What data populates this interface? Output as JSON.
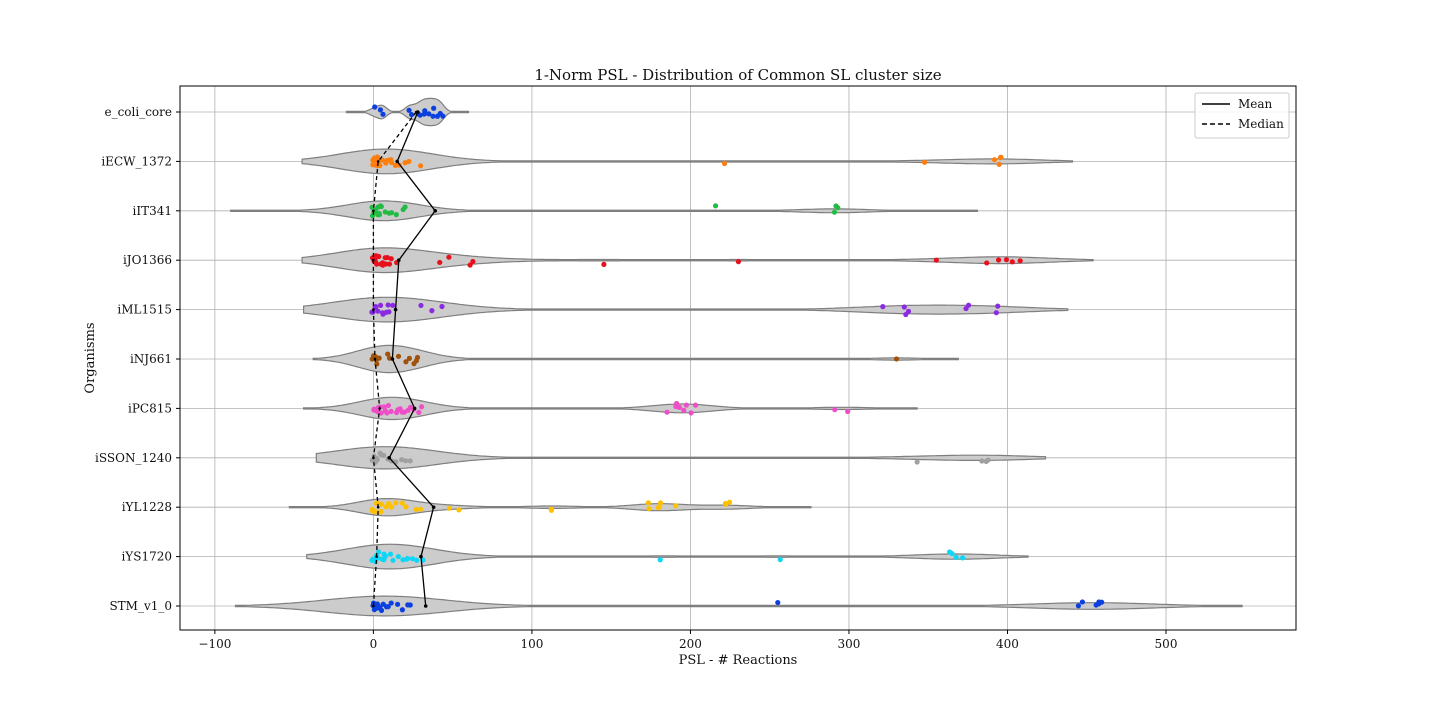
{
  "chart_data": {
    "type": "violin",
    "title": "1-Norm PSL - Distribution of Common SL cluster size",
    "xlabel": "PSL - # Reactions",
    "ylabel": "Organisms",
    "xlim": [
      -122,
      582
    ],
    "xticks": [
      -100,
      0,
      100,
      200,
      300,
      400,
      500
    ],
    "xtick_labels": [
      "−100",
      "0",
      "100",
      "200",
      "300",
      "400",
      "500"
    ],
    "grid": true,
    "legend": {
      "position": "top-right",
      "entries": [
        {
          "label": "Mean",
          "style": "solid"
        },
        {
          "label": "Median",
          "style": "dashed"
        }
      ]
    },
    "series": [
      {
        "name": "e_coli_core",
        "color": "#0b3fe0",
        "mean": 28,
        "median": 27,
        "violin_range": [
          -17,
          60
        ],
        "violin_width": 0.55,
        "points": [
          0,
          5,
          6,
          22,
          24,
          28,
          30,
          32,
          33,
          35,
          37,
          38,
          40,
          42,
          43
        ]
      },
      {
        "name": "iECW_1372",
        "color": "#ff7f0e",
        "mean": 15,
        "median": 3,
        "violin_range": [
          -45,
          441
        ],
        "violin_width": 0.5,
        "points": [
          0,
          0,
          1,
          1,
          2,
          2,
          3,
          3,
          4,
          5,
          6,
          7,
          8,
          9,
          10,
          11,
          12,
          14,
          16,
          20,
          22,
          30,
          222,
          348,
          392,
          394,
          395,
          396
        ]
      },
      {
        "name": "iIT341",
        "color": "#22bb44",
        "mean": 39,
        "median": 0,
        "violin_range": [
          -90,
          381
        ],
        "violin_width": 0.4,
        "points": [
          0,
          0,
          1,
          1,
          2,
          2,
          3,
          4,
          5,
          6,
          8,
          10,
          12,
          15,
          18,
          20,
          215,
          290,
          291,
          292
        ]
      },
      {
        "name": "iJO1366",
        "color": "#e8101c",
        "mean": 16,
        "median": 0,
        "violin_range": [
          -45,
          454
        ],
        "violin_width": 0.5,
        "points": [
          0,
          0,
          0,
          1,
          1,
          2,
          2,
          3,
          3,
          4,
          5,
          6,
          7,
          8,
          9,
          10,
          11,
          15,
          42,
          48,
          60,
          62,
          146,
          231,
          355,
          386,
          395,
          400,
          403,
          408
        ]
      },
      {
        "name": "iML1515",
        "color": "#8a2be2",
        "mean": 14,
        "median": 0,
        "violin_range": [
          -44,
          438
        ],
        "violin_width": 0.5,
        "points": [
          0,
          0,
          1,
          1,
          2,
          3,
          4,
          5,
          6,
          7,
          8,
          9,
          10,
          13,
          31,
          36,
          44,
          321,
          335,
          336,
          337,
          374,
          376,
          392,
          393
        ]
      },
      {
        "name": "iNJ661",
        "color": "#a0520c",
        "mean": 12,
        "median": 1,
        "violin_range": [
          -38,
          369
        ],
        "violin_width": 0.55,
        "points": [
          0,
          0,
          1,
          1,
          2,
          3,
          4,
          10,
          11,
          15,
          20,
          22,
          25,
          27,
          28,
          330
        ]
      },
      {
        "name": "iPC815",
        "color": "#ee4fc8",
        "mean": 26,
        "median": 4,
        "violin_range": [
          -44,
          343
        ],
        "violin_width": 0.45,
        "points": [
          0,
          0,
          1,
          2,
          3,
          4,
          5,
          6,
          7,
          8,
          10,
          12,
          14,
          15,
          17,
          18,
          20,
          22,
          24,
          26,
          28,
          30,
          186,
          190,
          192,
          194,
          195,
          198,
          200,
          204,
          292,
          299
        ]
      },
      {
        "name": "iSSON_1240",
        "color": "#a0a0a0",
        "mean": 10,
        "median": 0,
        "violin_range": [
          -36,
          424
        ],
        "violin_width": 0.45,
        "points": [
          0,
          0,
          1,
          1,
          2,
          3,
          4,
          5,
          7,
          9,
          12,
          15,
          18,
          20,
          24,
          343,
          384,
          386,
          387
        ]
      },
      {
        "name": "iYL1228",
        "color": "#ffc000",
        "mean": 38,
        "median": 3,
        "violin_range": [
          -53,
          276
        ],
        "violin_width": 0.35,
        "points": [
          0,
          0,
          1,
          2,
          3,
          4,
          5,
          6,
          8,
          10,
          12,
          15,
          18,
          20,
          27,
          30,
          47,
          53,
          112,
          113,
          173,
          174,
          180,
          181,
          182,
          191,
          222,
          223,
          224
        ]
      },
      {
        "name": "iYS1720",
        "color": "#0ed6f6",
        "mean": 30,
        "median": 2,
        "violin_range": [
          -42,
          413
        ],
        "violin_width": 0.5,
        "points": [
          0,
          0,
          1,
          1,
          2,
          3,
          4,
          5,
          6,
          7,
          8,
          10,
          12,
          15,
          18,
          20,
          22,
          25,
          28,
          31,
          181,
          256,
          364,
          366,
          367,
          371
        ]
      },
      {
        "name": "STM_v1_0",
        "color": "#0b3fe0",
        "mean": 33,
        "median": 0,
        "violin_range": [
          -87,
          548
        ],
        "violin_width": 0.4,
        "points": [
          0,
          0,
          0,
          1,
          1,
          2,
          2,
          3,
          4,
          5,
          6,
          8,
          10,
          12,
          15,
          18,
          22,
          24,
          256,
          445,
          447,
          456,
          457,
          458,
          460
        ]
      }
    ]
  }
}
